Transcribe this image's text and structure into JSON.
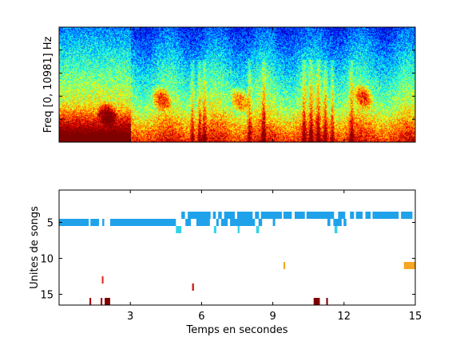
{
  "chart_data": [
    {
      "type": "heatmap",
      "ylabel": "Freq [0, 10981] Hz",
      "xlabel": "",
      "xlim": [
        0,
        15
      ],
      "ylim": [
        0,
        10981
      ],
      "colormap": "jet",
      "grid": false,
      "xticks_labeled": false,
      "yticks_labeled": false,
      "colors": {
        "background_top": "#1f7fd6",
        "background_mid": "#5fd0a6",
        "background_low": "#b8e36a",
        "energy_mid": "#f2d23a",
        "energy_high": "#d93a10",
        "energy_max": "#8a0000"
      }
    },
    {
      "type": "scatter",
      "xlabel": "Temps en secondes",
      "ylabel": "Unites de songs",
      "xlim": [
        0,
        15
      ],
      "ylim": [
        0.5,
        16.5
      ],
      "y_reversed": true,
      "xticks": [
        3,
        6,
        9,
        12,
        15
      ],
      "yticks": [
        5,
        10,
        15
      ],
      "grid": false,
      "segments": [
        {
          "unit": 5,
          "start": 0.0,
          "end": 1.25,
          "color": "#1fa2ea"
        },
        {
          "unit": 5,
          "start": 1.32,
          "end": 1.68,
          "color": "#1fa2ea"
        },
        {
          "unit": 5,
          "start": 1.82,
          "end": 1.9,
          "color": "#1fa2ea"
        },
        {
          "unit": 5,
          "start": 2.15,
          "end": 4.92,
          "color": "#1fa2ea"
        },
        {
          "unit": 4,
          "start": 5.15,
          "end": 5.3,
          "color": "#1fa2ea"
        },
        {
          "unit": 4,
          "start": 5.42,
          "end": 6.38,
          "color": "#1fa2ea"
        },
        {
          "unit": 4,
          "start": 6.48,
          "end": 6.6,
          "color": "#1fa2ea"
        },
        {
          "unit": 4,
          "start": 6.7,
          "end": 6.85,
          "color": "#1fa2ea"
        },
        {
          "unit": 4,
          "start": 6.95,
          "end": 7.4,
          "color": "#1fa2ea"
        },
        {
          "unit": 4,
          "start": 7.5,
          "end": 8.15,
          "color": "#1fa2ea"
        },
        {
          "unit": 4,
          "start": 8.25,
          "end": 8.42,
          "color": "#1fa2ea"
        },
        {
          "unit": 4,
          "start": 8.5,
          "end": 9.38,
          "color": "#1fa2ea"
        },
        {
          "unit": 4,
          "start": 9.45,
          "end": 9.8,
          "color": "#1fa2ea"
        },
        {
          "unit": 4,
          "start": 9.92,
          "end": 10.35,
          "color": "#1fa2ea"
        },
        {
          "unit": 4,
          "start": 10.42,
          "end": 11.58,
          "color": "#1fa2ea"
        },
        {
          "unit": 4,
          "start": 11.75,
          "end": 12.05,
          "color": "#1fa2ea"
        },
        {
          "unit": 4,
          "start": 12.25,
          "end": 12.42,
          "color": "#1fa2ea"
        },
        {
          "unit": 4,
          "start": 12.5,
          "end": 12.78,
          "color": "#1fa2ea"
        },
        {
          "unit": 4,
          "start": 12.9,
          "end": 13.12,
          "color": "#1fa2ea"
        },
        {
          "unit": 4,
          "start": 13.2,
          "end": 14.3,
          "color": "#1fa2ea"
        },
        {
          "unit": 4,
          "start": 14.4,
          "end": 14.88,
          "color": "#1fa2ea"
        },
        {
          "unit": 5,
          "start": 5.32,
          "end": 5.55,
          "color": "#1fa2ea"
        },
        {
          "unit": 5,
          "start": 5.78,
          "end": 6.35,
          "color": "#1fa2ea"
        },
        {
          "unit": 5,
          "start": 6.62,
          "end": 6.72,
          "color": "#1fa2ea"
        },
        {
          "unit": 5,
          "start": 6.82,
          "end": 7.1,
          "color": "#1fa2ea"
        },
        {
          "unit": 5,
          "start": 7.2,
          "end": 8.25,
          "color": "#1fa2ea"
        },
        {
          "unit": 5,
          "start": 8.4,
          "end": 8.55,
          "color": "#1fa2ea"
        },
        {
          "unit": 5,
          "start": 9.0,
          "end": 9.1,
          "color": "#1fa2ea"
        },
        {
          "unit": 5,
          "start": 11.3,
          "end": 11.42,
          "color": "#1fa2ea"
        },
        {
          "unit": 5,
          "start": 11.55,
          "end": 11.9,
          "color": "#1fa2ea"
        },
        {
          "unit": 5,
          "start": 11.98,
          "end": 12.1,
          "color": "#1fa2ea"
        },
        {
          "unit": 6,
          "start": 4.92,
          "end": 5.15,
          "color": "#2fd3ea"
        },
        {
          "unit": 6,
          "start": 6.52,
          "end": 6.62,
          "color": "#2fd3ea"
        },
        {
          "unit": 6,
          "start": 7.52,
          "end": 7.6,
          "color": "#2fd3ea"
        },
        {
          "unit": 6,
          "start": 8.3,
          "end": 8.42,
          "color": "#2fd3ea"
        },
        {
          "unit": 6,
          "start": 11.6,
          "end": 11.72,
          "color": "#2fd3ea"
        },
        {
          "unit": 11,
          "start": 9.45,
          "end": 9.52,
          "color": "#f5a623"
        },
        {
          "unit": 11,
          "start": 14.52,
          "end": 15.0,
          "color": "#f5a623"
        },
        {
          "unit": 13,
          "start": 1.8,
          "end": 1.87,
          "color": "#e2261a"
        },
        {
          "unit": 14,
          "start": 5.6,
          "end": 5.68,
          "color": "#d0201a"
        },
        {
          "unit": 16,
          "start": 1.28,
          "end": 1.35,
          "color": "#a00000"
        },
        {
          "unit": 16,
          "start": 1.75,
          "end": 1.82,
          "color": "#a00000"
        },
        {
          "unit": 16,
          "start": 1.92,
          "end": 2.15,
          "color": "#800000"
        },
        {
          "unit": 16,
          "start": 10.72,
          "end": 10.98,
          "color": "#800000"
        },
        {
          "unit": 16,
          "start": 11.25,
          "end": 11.32,
          "color": "#800000"
        }
      ]
    }
  ]
}
